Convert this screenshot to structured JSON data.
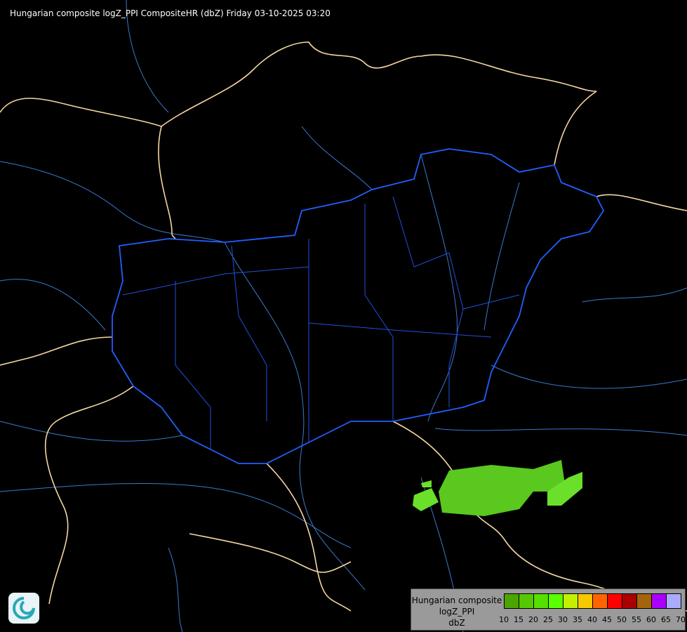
{
  "title": "Hungarian composite logZ_PPI CompositeHR (dbZ) Friday 03-10-2025 03:20",
  "legend": {
    "lines": [
      "Hungarian composite",
      "logZ_PPI",
      "dbZ"
    ],
    "colors": [
      "#4ca400",
      "#55c800",
      "#55e000",
      "#5aff00",
      "#c3f000",
      "#f5c800",
      "#ff6400",
      "#ff0000",
      "#aa0000",
      "#a5640a",
      "#aa00ff",
      "#aaaaff"
    ],
    "ticks": [
      "10",
      "15",
      "20",
      "25",
      "30",
      "35",
      "40",
      "45",
      "50",
      "55",
      "60",
      "65",
      "70"
    ]
  },
  "map_colors": {
    "country_border": "#f5d6a0",
    "hungary_border": "#2060ff",
    "rivers": "#3a7acc",
    "radar_echo": "#5aff00"
  },
  "logo": "meteorological-service-logo"
}
